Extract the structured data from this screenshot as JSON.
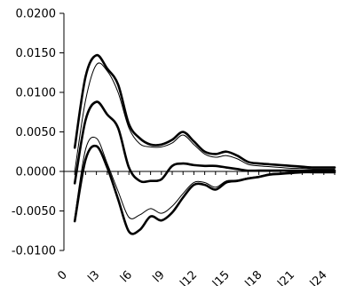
{
  "chart_data": {
    "type": "line",
    "title": "",
    "xlabel": "",
    "ylabel": "",
    "ylim": [
      -0.01,
      0.02
    ],
    "y_ticks": [
      "0.0200",
      "0.0150",
      "0.0100",
      "0.0050",
      "0.0000",
      "-0.0050",
      "-0.0100"
    ],
    "x_tick_labels": [
      "0",
      "l3",
      "l6",
      "l9",
      "l12",
      "l15",
      "l18",
      "l21",
      "l24"
    ],
    "x_tick_values": [
      0,
      3,
      6,
      9,
      12,
      15,
      18,
      21,
      24
    ],
    "xlim": [
      0,
      25
    ],
    "grid": false,
    "legend": "none",
    "series": [
      {
        "x": [
          1,
          2,
          3,
          4,
          5,
          6,
          7,
          8,
          9,
          10,
          11,
          12,
          13,
          14,
          15,
          16,
          17,
          18,
          19,
          20,
          21,
          22,
          23,
          24,
          25
        ],
        "values": [
          0.003,
          0.012,
          0.0147,
          0.013,
          0.011,
          0.006,
          0.0042,
          0.0034,
          0.0034,
          0.004,
          0.005,
          0.0038,
          0.0025,
          0.0022,
          0.0025,
          0.002,
          0.0012,
          0.001,
          0.0009,
          0.0008,
          0.0007,
          0.0006,
          0.0005,
          0.0005,
          0.0005
        ]
      },
      {
        "x": [
          1,
          2,
          3,
          4,
          5,
          6,
          7,
          8,
          9,
          10,
          11,
          12,
          13,
          14,
          15,
          16,
          17,
          18,
          19,
          20,
          21,
          22,
          23,
          24,
          25
        ],
        "values": [
          0.0,
          0.009,
          0.0135,
          0.0127,
          0.01,
          0.0055,
          0.0035,
          0.0031,
          0.0031,
          0.0036,
          0.0046,
          0.0034,
          0.0022,
          0.0018,
          0.002,
          0.0016,
          0.0009,
          0.0007,
          0.0006,
          0.0005,
          0.0004,
          0.0004,
          0.0003,
          0.0003,
          0.0003
        ]
      },
      {
        "x": [
          1,
          2,
          3,
          4,
          5,
          6,
          7,
          8,
          9,
          10,
          11,
          12,
          13,
          14,
          15,
          16,
          17,
          18,
          19,
          20,
          21,
          22,
          23,
          24,
          25
        ],
        "values": [
          -0.0015,
          0.0065,
          0.0088,
          0.0072,
          0.0055,
          0.0005,
          -0.0012,
          -0.0012,
          -0.001,
          0.0007,
          0.001,
          0.0008,
          0.0007,
          0.0007,
          0.0005,
          0.0003,
          0.0001,
          0.0001,
          0.0001,
          0.0001,
          0.0001,
          0.0001,
          0.0001,
          0.0001,
          0.0001
        ]
      },
      {
        "x": [
          1,
          2,
          3,
          4,
          5,
          6,
          7,
          8,
          9,
          10,
          11,
          12,
          13,
          14,
          15,
          16,
          17,
          18,
          19,
          20,
          21,
          22,
          23,
          24,
          25
        ],
        "values": [
          -0.0058,
          0.0028,
          0.0042,
          0.001,
          -0.0025,
          -0.0058,
          -0.0055,
          -0.0047,
          -0.0053,
          -0.0044,
          -0.0028,
          -0.0014,
          -0.0014,
          -0.002,
          -0.0012,
          -0.0011,
          -0.0008,
          -0.0006,
          -0.0003,
          -0.0002,
          -0.0001,
          0.0,
          0.0,
          0.0,
          0.0
        ]
      },
      {
        "x": [
          1,
          2,
          3,
          4,
          5,
          6,
          7,
          8,
          9,
          10,
          11,
          12,
          13,
          14,
          15,
          16,
          17,
          18,
          19,
          20,
          21,
          22,
          23,
          24,
          25
        ],
        "values": [
          -0.0063,
          0.0015,
          0.0032,
          0.0005,
          -0.0035,
          -0.0076,
          -0.0074,
          -0.0057,
          -0.0062,
          -0.0052,
          -0.0033,
          -0.0017,
          -0.0017,
          -0.0023,
          -0.0014,
          -0.0012,
          -0.0009,
          -0.0007,
          -0.0004,
          -0.0003,
          -0.0002,
          -0.0001,
          -0.0001,
          -0.0001,
          -0.0001
        ]
      }
    ],
    "series_styles": [
      {
        "color": "#000000",
        "width": 2.6
      },
      {
        "color": "#000000",
        "width": 1.0
      },
      {
        "color": "#000000",
        "width": 2.6
      },
      {
        "color": "#000000",
        "width": 1.0
      },
      {
        "color": "#000000",
        "width": 2.6
      }
    ]
  }
}
